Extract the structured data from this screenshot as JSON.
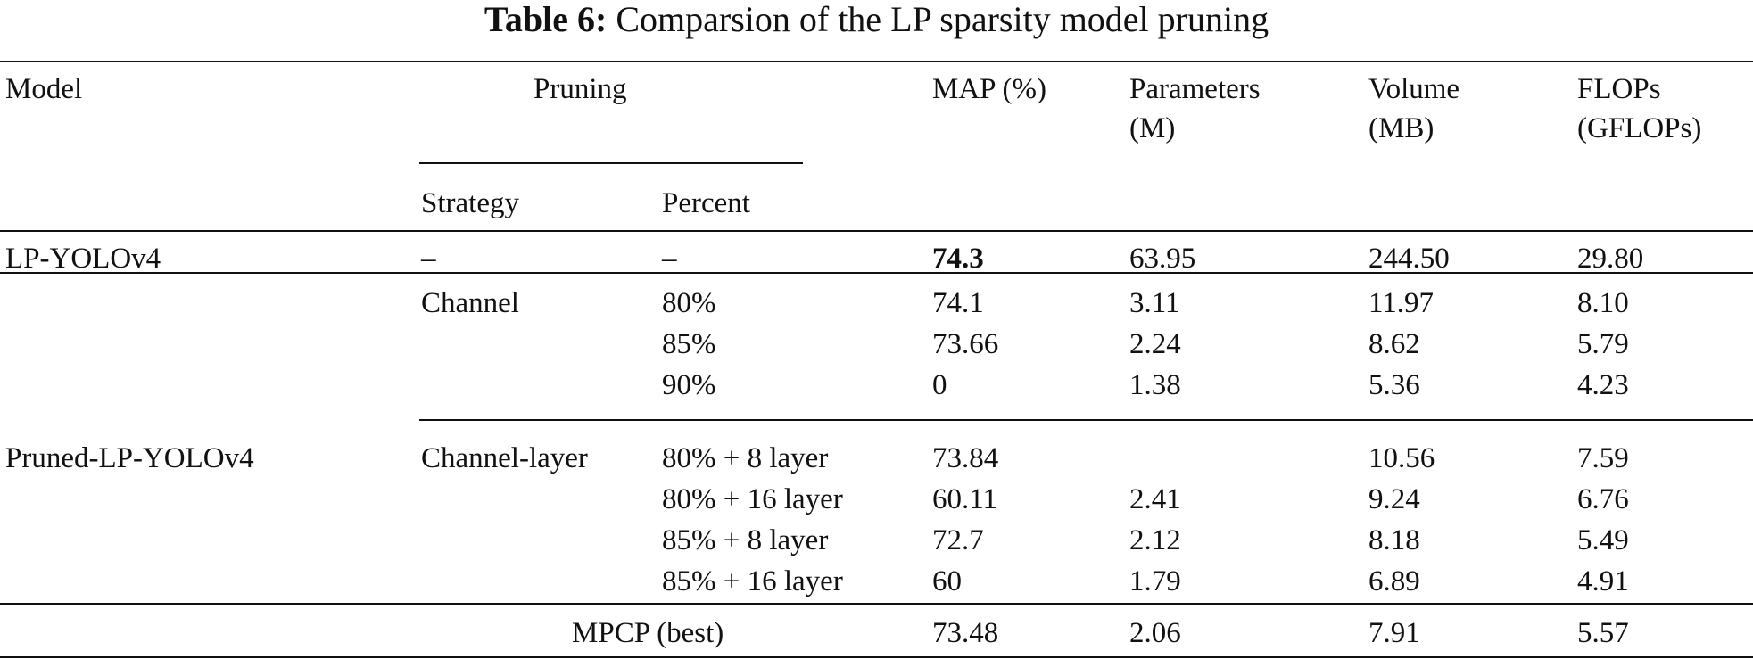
{
  "table": {
    "label": "Table 6:",
    "caption": "Comparsion of the LP sparsity model pruning",
    "headers": {
      "model": "Model",
      "pruning": "Pruning",
      "strategy": "Strategy",
      "percent": "Percent",
      "map": "MAP (%)",
      "parameters_line1": "Parameters",
      "parameters_line2": "(M)",
      "volume_line1": "Volume",
      "volume_line2": "(MB)",
      "flops_line1": "FLOPs",
      "flops_line2": "(GFLOPs)"
    },
    "baseline": {
      "model": "LP-YOLOv4",
      "strategy": "–",
      "percent": "–",
      "map": "74.3",
      "parameters": "63.95",
      "volume": "244.50",
      "flops": "29.80"
    },
    "channel_group": {
      "strategy": "Channel",
      "rows": [
        {
          "percent": "80%",
          "map": "74.1",
          "parameters": "3.11",
          "volume": "11.97",
          "flops": "8.10"
        },
        {
          "percent": "85%",
          "map": "73.66",
          "parameters": "2.24",
          "volume": "8.62",
          "flops": "5.79"
        },
        {
          "percent": "90%",
          "map": "0",
          "parameters": "1.38",
          "volume": "5.36",
          "flops": "4.23"
        }
      ]
    },
    "layer_group": {
      "model": "Pruned-LP-YOLOv4",
      "strategy": "Channel-layer",
      "rows": [
        {
          "percent": "80% + 8 layer",
          "map": "73.84",
          "parameters": "",
          "volume": "10.56",
          "flops": "7.59"
        },
        {
          "percent": "80% + 16 layer",
          "map": "60.11",
          "parameters": "2.41",
          "volume": "9.24",
          "flops": "6.76"
        },
        {
          "percent": "85% + 8 layer",
          "map": "72.7",
          "parameters": "2.12",
          "volume": "8.18",
          "flops": "5.49"
        },
        {
          "percent": "85% + 16 layer",
          "map": "60",
          "parameters": "1.79",
          "volume": "6.89",
          "flops": "4.91"
        }
      ]
    },
    "best": {
      "label": "MPCP (best)",
      "map": "73.48",
      "parameters": "2.06",
      "volume": "7.91",
      "flops": "5.57"
    }
  }
}
